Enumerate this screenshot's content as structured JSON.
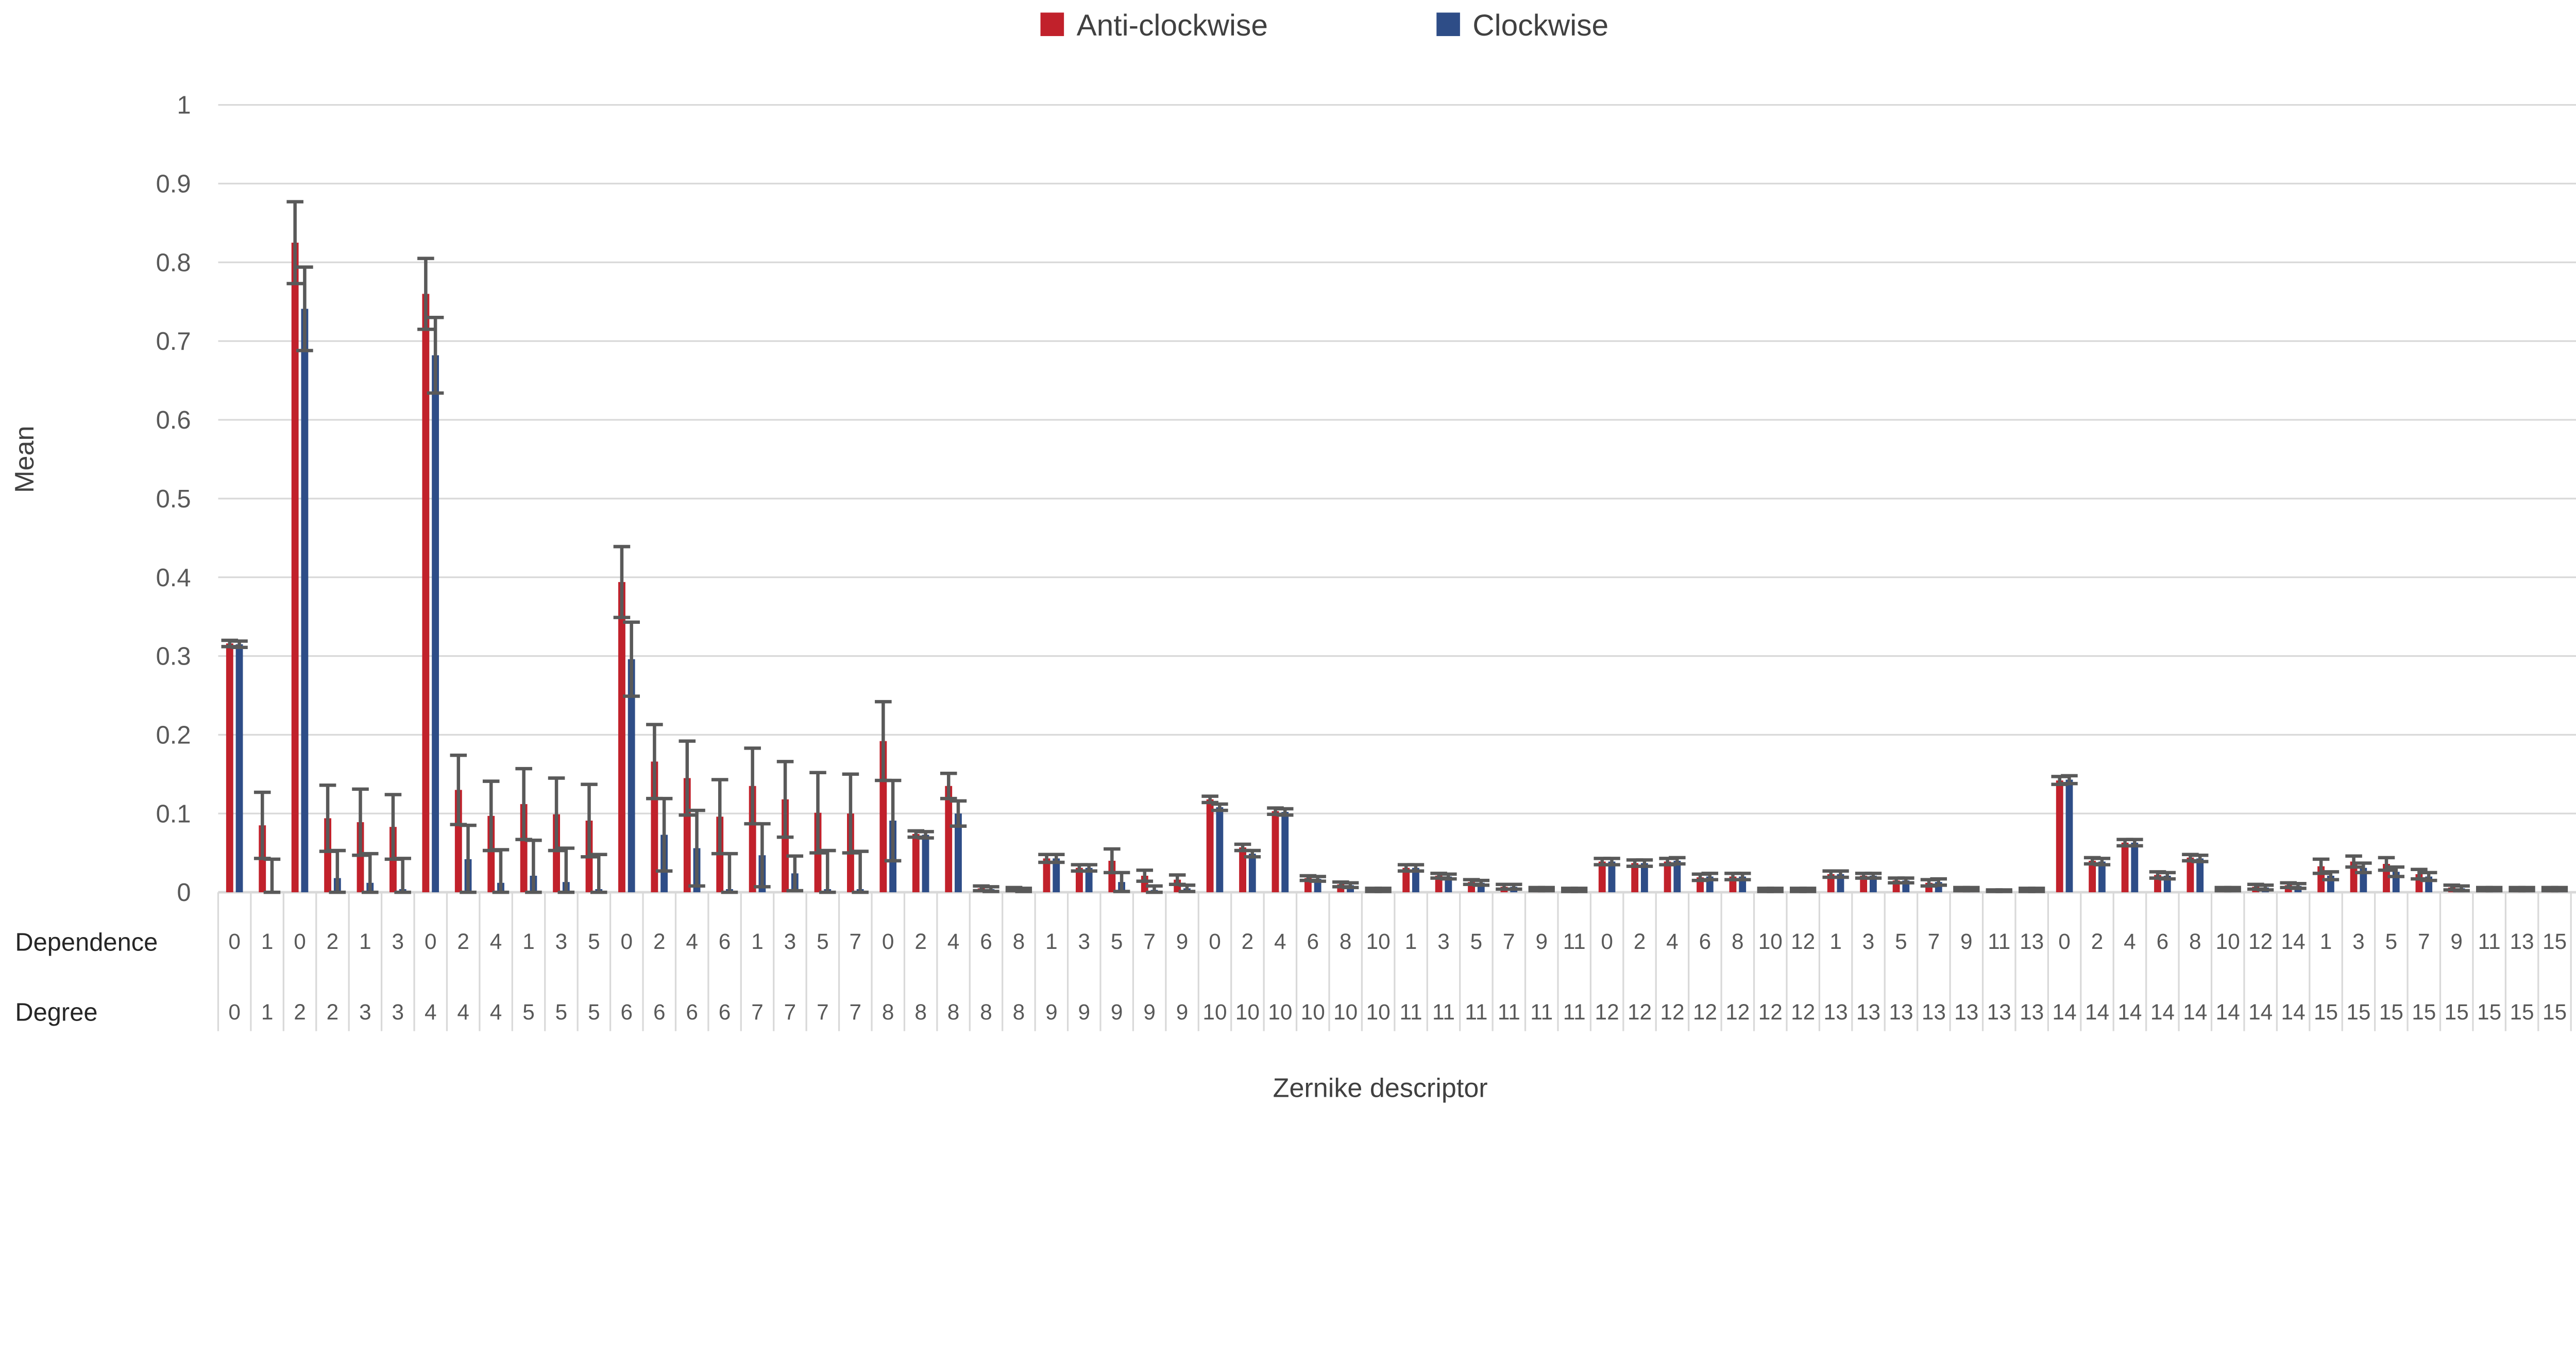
{
  "chart_data": {
    "type": "bar",
    "title": "",
    "ylabel": "Mean",
    "xlabel": "Zernike descriptor",
    "row_labels": [
      "Dependence",
      "Degree"
    ],
    "ylim": [
      0,
      1
    ],
    "ytick_step": 0.1,
    "ytick_labels": [
      "0",
      "0.1",
      "0.2",
      "0.3",
      "0.4",
      "0.5",
      "0.6",
      "0.7",
      "0.8",
      "0.9",
      "1"
    ],
    "grid": true,
    "legend_position": "top-center",
    "colors": {
      "anticlockwise": "#C1212B",
      "clockwise": "#2E4D87",
      "error_bar": "#595959",
      "gridline": "#D9D9D9",
      "axis_text": "#595959",
      "title_text": "#404040"
    },
    "legend": [
      {
        "label": "Anti-clockwise",
        "color": "#C1212B"
      },
      {
        "label": "Clockwise",
        "color": "#2E4D87"
      }
    ],
    "categories": {
      "dependence": [
        0,
        1,
        0,
        2,
        1,
        3,
        0,
        2,
        4,
        1,
        3,
        5,
        0,
        2,
        4,
        6,
        1,
        3,
        5,
        7,
        0,
        2,
        4,
        6,
        8,
        1,
        3,
        5,
        7,
        9,
        0,
        2,
        4,
        6,
        8,
        10,
        1,
        3,
        5,
        7,
        9,
        11,
        0,
        2,
        4,
        6,
        8,
        10,
        12,
        1,
        3,
        5,
        7,
        9,
        11,
        13,
        0,
        2,
        4,
        6,
        8,
        10,
        12,
        14,
        1,
        3,
        5,
        7,
        9,
        11,
        13,
        15
      ],
      "degree": [
        0,
        1,
        2,
        2,
        3,
        3,
        4,
        4,
        4,
        5,
        5,
        5,
        6,
        6,
        6,
        6,
        7,
        7,
        7,
        7,
        8,
        8,
        8,
        8,
        8,
        9,
        9,
        9,
        9,
        9,
        10,
        10,
        10,
        10,
        10,
        10,
        11,
        11,
        11,
        11,
        11,
        11,
        12,
        12,
        12,
        12,
        12,
        12,
        12,
        13,
        13,
        13,
        13,
        13,
        13,
        13,
        14,
        14,
        14,
        14,
        14,
        14,
        14,
        14,
        15,
        15,
        15,
        15,
        15,
        15,
        15,
        15
      ]
    },
    "series": [
      {
        "name": "Anti-clockwise",
        "color": "#C1212B",
        "values": [
          0.316,
          0.085,
          0.825,
          0.094,
          0.089,
          0.083,
          0.76,
          0.13,
          0.097,
          0.112,
          0.099,
          0.091,
          0.394,
          0.166,
          0.145,
          0.096,
          0.135,
          0.118,
          0.101,
          0.1,
          0.192,
          0.074,
          0.135,
          0.005,
          0.004,
          0.043,
          0.031,
          0.04,
          0.021,
          0.016,
          0.118,
          0.057,
          0.103,
          0.018,
          0.01,
          0.003,
          0.031,
          0.021,
          0.013,
          0.007,
          0.004,
          0.003,
          0.039,
          0.037,
          0.039,
          0.019,
          0.02,
          0.003,
          0.003,
          0.023,
          0.021,
          0.015,
          0.012,
          0.004,
          0.002,
          0.003,
          0.142,
          0.04,
          0.063,
          0.022,
          0.044,
          0.004,
          0.007,
          0.009,
          0.033,
          0.039,
          0.036,
          0.023,
          0.006,
          0.004,
          0.004,
          0.004
        ],
        "errors": [
          0.004,
          0.042,
          0.052,
          0.042,
          0.042,
          0.041,
          0.045,
          0.044,
          0.044,
          0.045,
          0.046,
          0.046,
          0.045,
          0.047,
          0.047,
          0.047,
          0.048,
          0.048,
          0.051,
          0.05,
          0.05,
          0.004,
          0.016,
          0.003,
          0.002,
          0.005,
          0.004,
          0.015,
          0.007,
          0.006,
          0.004,
          0.004,
          0.004,
          0.003,
          0.003,
          0.002,
          0.004,
          0.003,
          0.003,
          0.003,
          0.002,
          0.002,
          0.004,
          0.004,
          0.004,
          0.004,
          0.004,
          0.002,
          0.002,
          0.004,
          0.003,
          0.003,
          0.004,
          0.002,
          0.001,
          0.002,
          0.005,
          0.004,
          0.004,
          0.004,
          0.004,
          0.002,
          0.003,
          0.003,
          0.009,
          0.007,
          0.008,
          0.006,
          0.003,
          0.002,
          0.002,
          0.002
        ]
      },
      {
        "name": "Clockwise",
        "color": "#2E4D87",
        "values": [
          0.315,
          0.002,
          0.741,
          0.018,
          0.012,
          0.004,
          0.682,
          0.042,
          0.012,
          0.021,
          0.013,
          0.004,
          0.296,
          0.073,
          0.056,
          0.004,
          0.047,
          0.024,
          0.004,
          0.004,
          0.091,
          0.073,
          0.1,
          0.004,
          0.003,
          0.043,
          0.031,
          0.013,
          0.003,
          0.005,
          0.108,
          0.049,
          0.102,
          0.017,
          0.009,
          0.003,
          0.031,
          0.02,
          0.012,
          0.007,
          0.004,
          0.003,
          0.039,
          0.037,
          0.04,
          0.02,
          0.02,
          0.003,
          0.003,
          0.023,
          0.021,
          0.015,
          0.013,
          0.004,
          0.002,
          0.003,
          0.143,
          0.039,
          0.063,
          0.021,
          0.043,
          0.004,
          0.006,
          0.008,
          0.021,
          0.031,
          0.026,
          0.02,
          0.005,
          0.004,
          0.004,
          0.004
        ],
        "errors": [
          0.004,
          0.04,
          0.053,
          0.035,
          0.037,
          0.039,
          0.048,
          0.043,
          0.042,
          0.045,
          0.043,
          0.044,
          0.047,
          0.046,
          0.048,
          0.045,
          0.04,
          0.022,
          0.049,
          0.048,
          0.051,
          0.004,
          0.016,
          0.003,
          0.002,
          0.005,
          0.004,
          0.012,
          0.005,
          0.004,
          0.004,
          0.004,
          0.004,
          0.003,
          0.003,
          0.002,
          0.004,
          0.003,
          0.003,
          0.003,
          0.002,
          0.002,
          0.004,
          0.004,
          0.004,
          0.004,
          0.004,
          0.002,
          0.002,
          0.004,
          0.003,
          0.003,
          0.004,
          0.002,
          0.001,
          0.002,
          0.005,
          0.004,
          0.004,
          0.004,
          0.004,
          0.002,
          0.003,
          0.003,
          0.005,
          0.006,
          0.006,
          0.005,
          0.003,
          0.002,
          0.002,
          0.002
        ]
      }
    ]
  }
}
